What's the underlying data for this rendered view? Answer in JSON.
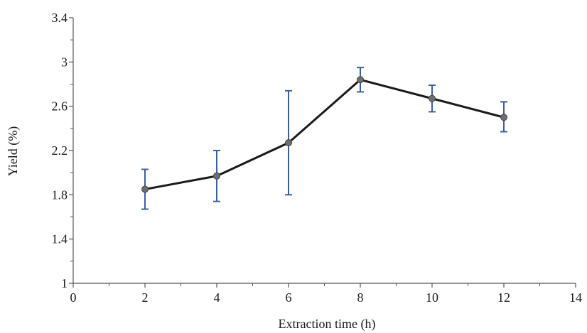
{
  "chart_data": {
    "type": "line",
    "title": "",
    "xlabel": "Extraction time (h)",
    "ylabel": "Yield (%)",
    "xlim": [
      0,
      14
    ],
    "ylim": [
      1,
      3.4
    ],
    "x_ticks": [
      0,
      2,
      4,
      6,
      8,
      10,
      12,
      14
    ],
    "x_tick_labels": [
      "0",
      "2",
      "4",
      "6",
      "8",
      "10",
      "12",
      "14"
    ],
    "y_ticks": [
      1,
      1.4,
      1.8,
      2.2,
      2.6,
      3,
      3.4
    ],
    "y_tick_labels": [
      "1",
      "1.4",
      "1.8",
      "2.2",
      "2.6",
      "3",
      "3.4"
    ],
    "grid": false,
    "legend": "none",
    "series": [
      {
        "x": [
          2,
          4,
          6,
          8,
          10,
          12
        ],
        "y": [
          1.85,
          1.97,
          2.27,
          2.84,
          2.67,
          2.5
        ],
        "error_low": [
          1.67,
          1.74,
          1.8,
          2.73,
          2.55,
          2.37
        ],
        "error_high": [
          2.03,
          2.2,
          2.74,
          2.95,
          2.79,
          2.64
        ],
        "line_color": "#1a1a1a",
        "marker_color": "#6e6e6e",
        "error_color": "#3a5fa8"
      }
    ]
  }
}
